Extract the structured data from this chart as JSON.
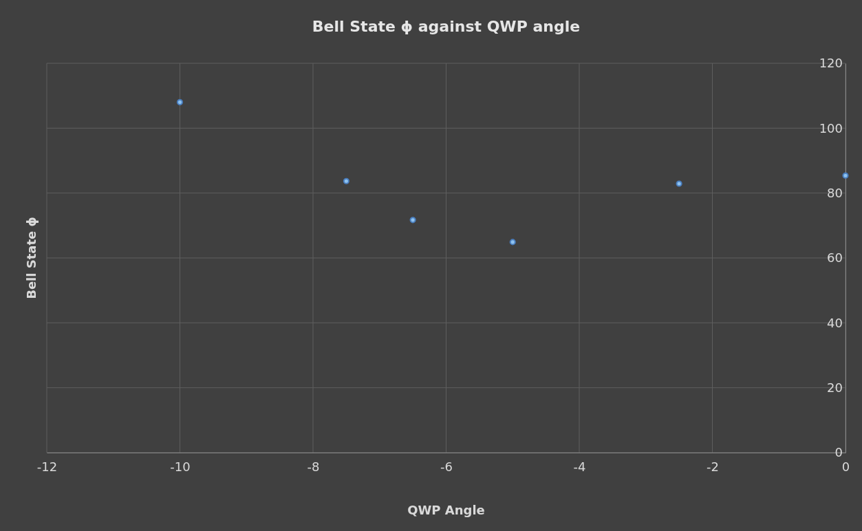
{
  "chart_data": {
    "type": "scatter",
    "title": "Bell State ϕ against QWP angle",
    "xlabel": "QWP Angle",
    "ylabel": "Bell State ϕ",
    "x": [
      -10,
      -7.5,
      -6.5,
      -5,
      -2.5,
      0
    ],
    "series": [
      {
        "color": "#8fc3f0",
        "values": [
          108,
          83.7,
          71.7,
          64.9,
          82.9,
          85.4
        ]
      }
    ],
    "xlim": [
      -12,
      0
    ],
    "xticks": [
      -12,
      -10,
      -8,
      -6,
      -4,
      -2,
      0
    ],
    "ylim": [
      0,
      120
    ],
    "yticks": [
      0,
      20,
      40,
      60,
      80,
      100,
      120
    ],
    "grid": true,
    "marker": "circle"
  }
}
